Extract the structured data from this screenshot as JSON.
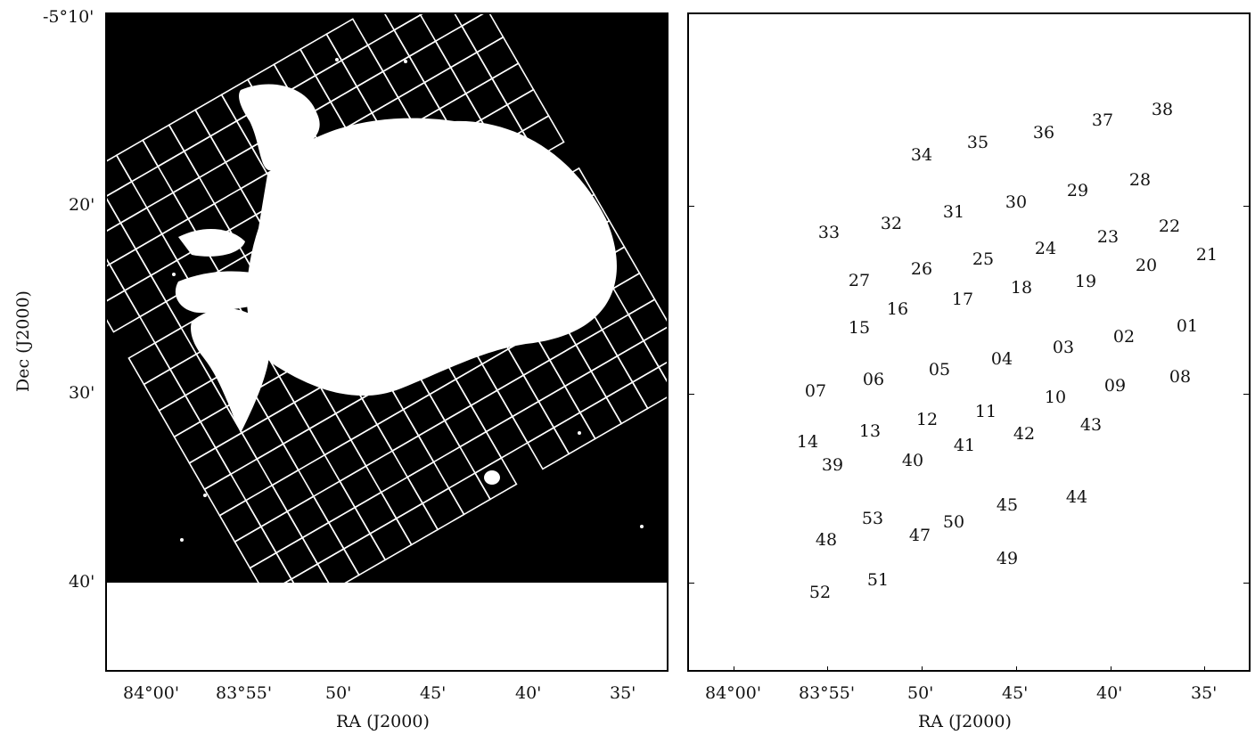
{
  "left_panel": {
    "y_ticks": [
      "-5°10'",
      "20'",
      "30'",
      "40'"
    ],
    "x_ticks": [
      "84°00'",
      "83°55'",
      "50'",
      "45'",
      "40'",
      "35'"
    ],
    "xlabel": "RA (J2000)",
    "ylabel": "Dec (J2000)"
  },
  "right_panel": {
    "x_ticks": [
      "84°00'",
      "83°55'",
      "50'",
      "45'",
      "40'",
      "35'"
    ],
    "xlabel": "RA (J2000)",
    "tile_labels": [
      "01",
      "02",
      "03",
      "04",
      "05",
      "06",
      "07",
      "08",
      "09",
      "10",
      "11",
      "12",
      "13",
      "14",
      "15",
      "16",
      "17",
      "18",
      "19",
      "20",
      "21",
      "22",
      "23",
      "24",
      "25",
      "26",
      "27",
      "28",
      "29",
      "30",
      "31",
      "32",
      "33",
      "34",
      "35",
      "36",
      "37",
      "38",
      "39",
      "40",
      "41",
      "42",
      "43",
      "44",
      "45",
      "47",
      "48",
      "49",
      "50",
      "51",
      "52",
      "53"
    ]
  },
  "colors": {
    "background": "#000000",
    "foreground": "#ffffff",
    "axis": "#000000"
  }
}
